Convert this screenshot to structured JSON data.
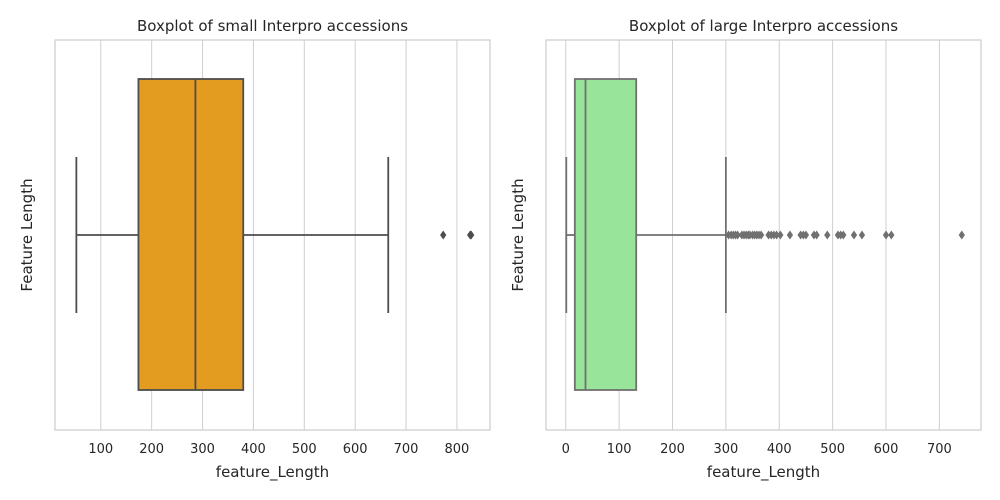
{
  "chart_data": [
    {
      "type": "box",
      "title": "Boxplot of small Interpro accessions",
      "xlabel": "feature_Length",
      "ylabel": "Feature Length",
      "xlim": [
        10,
        865
      ],
      "xticks": [
        100,
        200,
        300,
        400,
        500,
        600,
        700,
        800
      ],
      "grid": "vertical",
      "box": {
        "whisker_low": 52,
        "q1": 174,
        "median": 286,
        "q3": 380,
        "whisker_high": 665,
        "outliers": [
          773,
          826,
          828
        ],
        "fill_color": "#e49c20",
        "line_color": "#4d4d4d"
      }
    },
    {
      "type": "box",
      "title": "Boxplot of large Interpro accessions",
      "xlabel": "feature_Length",
      "ylabel": "Feature Length",
      "xlim": [
        -37,
        778
      ],
      "xticks": [
        0,
        100,
        200,
        300,
        400,
        500,
        600,
        700
      ],
      "grid": "vertical",
      "box": {
        "whisker_low": 1,
        "q1": 17,
        "median": 37,
        "q3": 132,
        "whisker_high": 300,
        "outliers": [
          305,
          310,
          314,
          318,
          322,
          330,
          334,
          338,
          342,
          345,
          350,
          354,
          358,
          362,
          366,
          380,
          385,
          390,
          395,
          402,
          420,
          440,
          445,
          450,
          465,
          470,
          490,
          510,
          515,
          520,
          540,
          555,
          600,
          610,
          742
        ],
        "fill_color": "#98e49a",
        "line_color": "#707070"
      }
    }
  ]
}
